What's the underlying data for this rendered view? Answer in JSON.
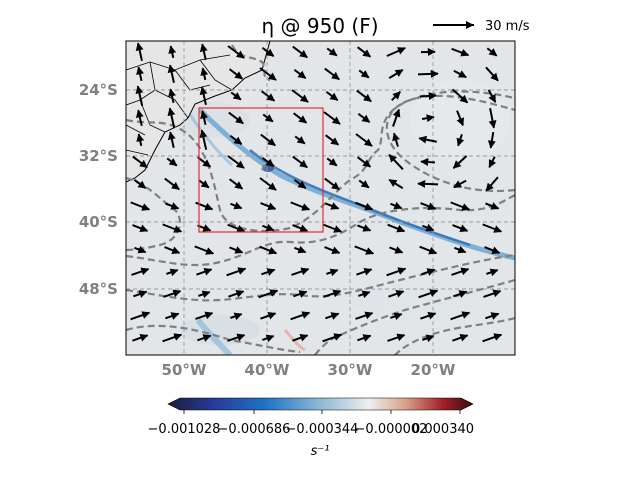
{
  "title": "η @ 950 (F)",
  "quiver_key": {
    "label": "30 m/s"
  },
  "map": {
    "lat_labels": [
      "24°S",
      "32°S",
      "40°S",
      "48°S"
    ],
    "lon_labels": [
      "50°W",
      "40°W",
      "30°W",
      "20°W"
    ],
    "extent": {
      "lon": [
        -57,
        -10
      ],
      "lat": [
        -56,
        -18
      ]
    },
    "gridlines": true,
    "contour_style": "dashed-gray",
    "box_color": "#e03030"
  },
  "colorbar": {
    "ticks": [
      "−0.001028",
      "−0.000686",
      "−0.000344",
      "−0.000002",
      "0.000340"
    ],
    "units": "s⁻¹",
    "colormap": "balance (navy → blue → white → red → dark red)",
    "colors": [
      "#1a1d3d",
      "#2a3fa8",
      "#1e78c8",
      "#8ab8d8",
      "#eeeeee",
      "#d89a80",
      "#a3202a",
      "#3a0a10"
    ]
  }
}
